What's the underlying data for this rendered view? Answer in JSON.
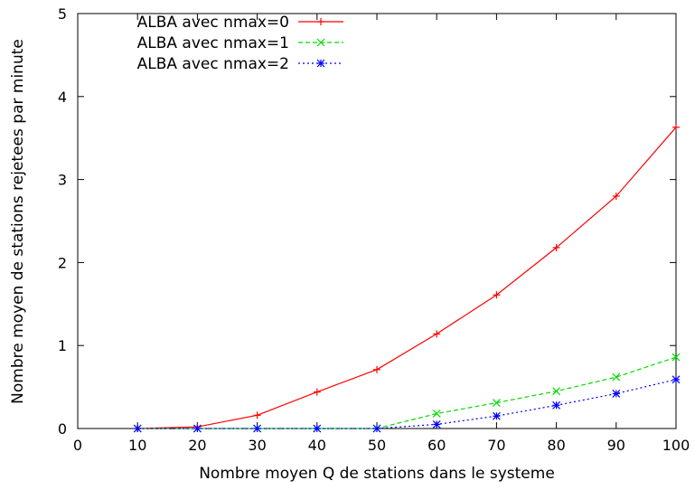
{
  "chart_data": {
    "type": "line",
    "title": "",
    "xlabel": "Nombre moyen Q de stations dans le systeme",
    "ylabel": "Nombre moyen de stations rejetees par minute",
    "xlim": [
      0,
      100
    ],
    "ylim": [
      0,
      5
    ],
    "xticks": [
      0,
      10,
      20,
      30,
      40,
      50,
      60,
      70,
      80,
      90,
      100
    ],
    "yticks": [
      0,
      1,
      2,
      3,
      4,
      5
    ],
    "grid": false,
    "legend_position": "top-left",
    "x": [
      10,
      20,
      30,
      40,
      50,
      60,
      70,
      80,
      90,
      100
    ],
    "series": [
      {
        "name": "ALBA avec nmax=0",
        "color": "#ff0000",
        "dash": "solid",
        "marker": "plus",
        "values": [
          0.0,
          0.02,
          0.16,
          0.44,
          0.71,
          1.14,
          1.61,
          2.18,
          2.8,
          3.63
        ]
      },
      {
        "name": "ALBA avec nmax=1",
        "color": "#00dd00",
        "dash": "dashed",
        "marker": "cross",
        "values": [
          0.0,
          0.0,
          0.0,
          0.0,
          0.0,
          0.18,
          0.31,
          0.45,
          0.62,
          0.86
        ]
      },
      {
        "name": "ALBA avec nmax=2",
        "color": "#0000ff",
        "dash": "dotted",
        "marker": "star",
        "values": [
          0.0,
          0.0,
          0.0,
          0.0,
          0.0,
          0.05,
          0.15,
          0.28,
          0.42,
          0.59
        ]
      }
    ]
  }
}
